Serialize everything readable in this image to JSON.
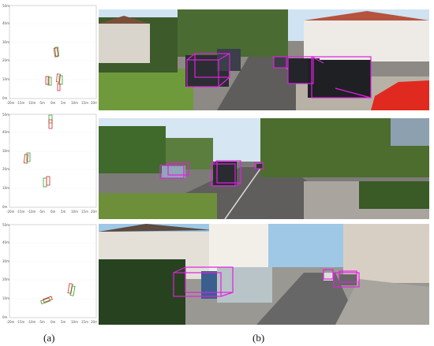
{
  "figure": {
    "panels": [
      {
        "id": "a",
        "caption": "(a)",
        "description": "bird's-eye view plots with predicted (red) and ground-truth (green) boxes",
        "y_ticks": [
          "0m",
          "10m",
          "20m",
          "30m",
          "40m",
          "50m"
        ],
        "x_ticks": [
          "-20m",
          "-15m",
          "-10m",
          "-5m",
          "0m",
          "5m",
          "10m",
          "15m",
          "20m"
        ]
      },
      {
        "id": "b",
        "caption": "(b)",
        "description": "street scene photos with magenta 3D bounding boxes"
      }
    ],
    "colors": {
      "predicted": "#d62728",
      "ground_truth": "#2ca02c",
      "box3d": "#e020e0"
    }
  }
}
